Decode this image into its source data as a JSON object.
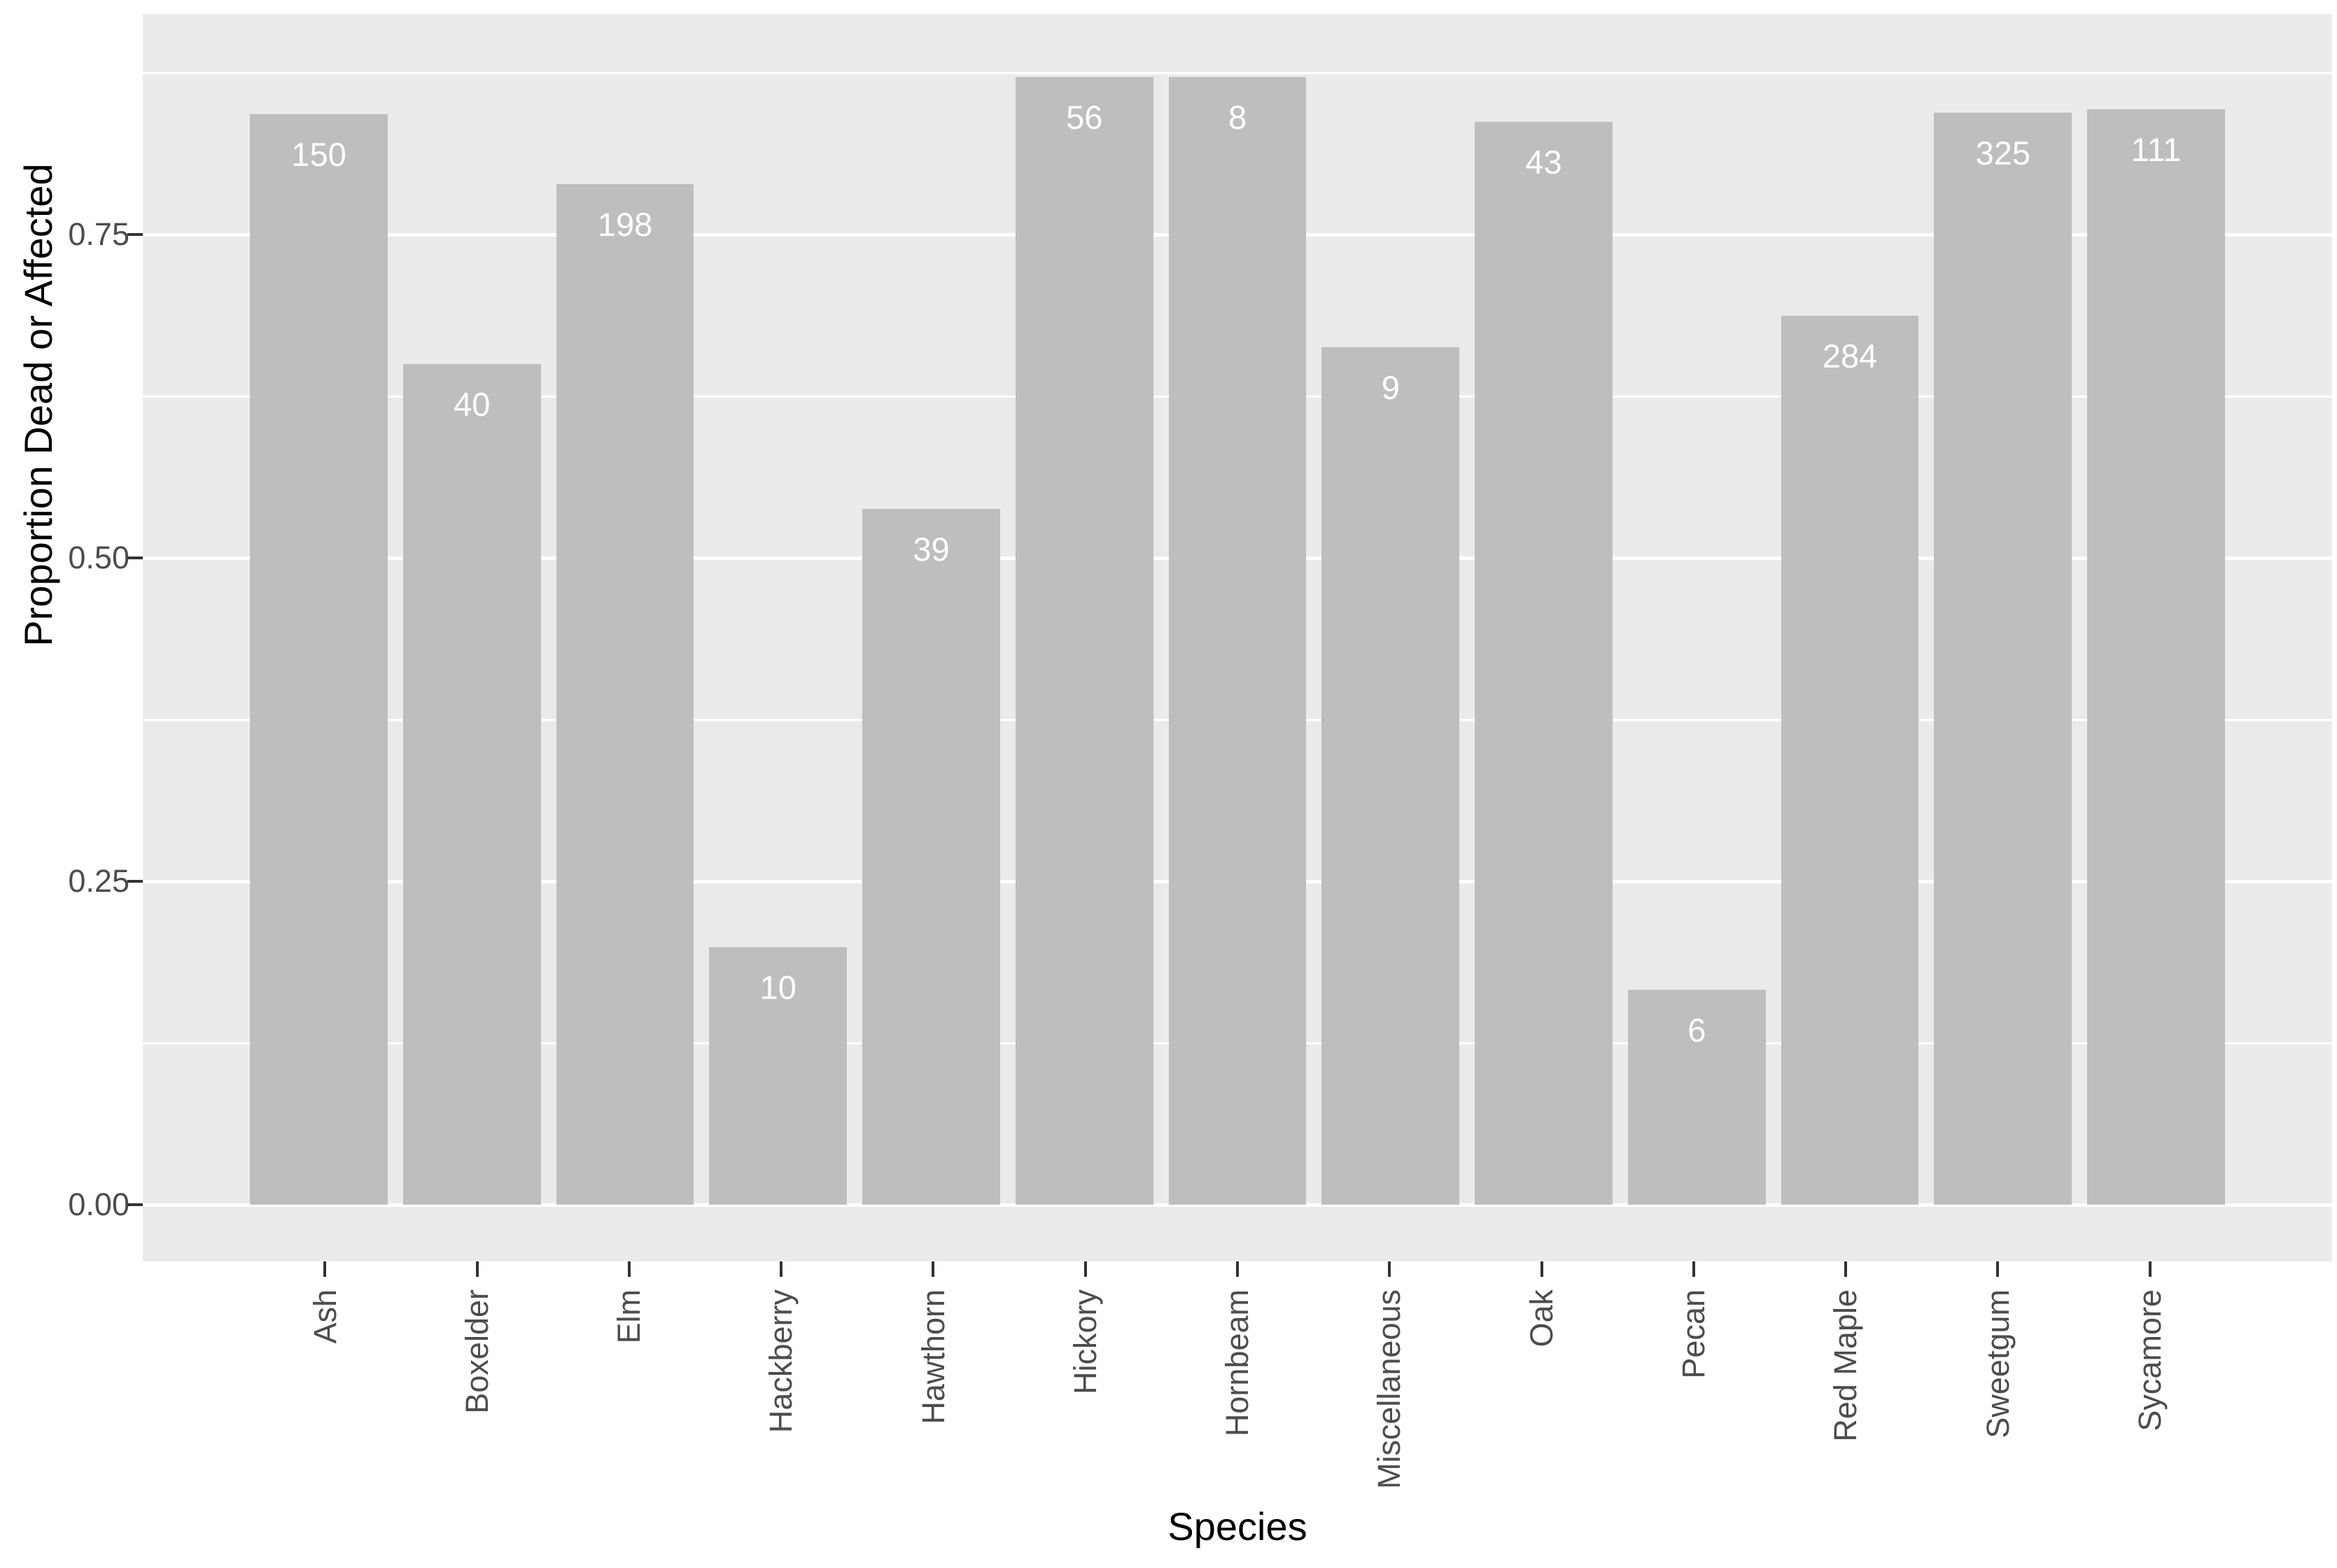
{
  "chart_data": {
    "type": "bar",
    "title": "",
    "xlabel": "Species",
    "ylabel": "Proportion Dead or Affected",
    "categories": [
      "Ash",
      "Boxelder",
      "Elm",
      "Hackberry",
      "Hawthorn",
      "Hickory",
      "Hornbeam",
      "Miscellaneous",
      "Oak",
      "Pecan",
      "Red Maple",
      "Sweetgum",
      "Sycamore"
    ],
    "values": [
      0.843,
      0.65,
      0.789,
      0.199,
      0.538,
      0.872,
      0.872,
      0.663,
      0.837,
      0.166,
      0.687,
      0.844,
      0.847
    ],
    "bar_labels": [
      "150",
      "40",
      "198",
      "10",
      "39",
      "56",
      "8",
      "9",
      "43",
      "6",
      "284",
      "325",
      "111"
    ],
    "y_ticks": [
      {
        "label": "0.00",
        "value": 0.0
      },
      {
        "label": "0.25",
        "value": 0.25
      },
      {
        "label": "0.50",
        "value": 0.5
      },
      {
        "label": "0.75",
        "value": 0.75
      }
    ],
    "y_minor_values": [
      0.125,
      0.375,
      0.625,
      0.875
    ],
    "ylim": [
      -0.044,
      0.919
    ],
    "bar_width_fraction": 0.9,
    "grid": true,
    "legend_position": "none",
    "colors": {
      "bar": "#bebebe",
      "bar_label": "#ffffff",
      "panel_background": "#ebebeb",
      "gridline": "#ffffff",
      "axis_text": "#4d4d4d",
      "tick_mark": "#333333",
      "axis_title": "#000000",
      "figure_background": "#ffffff"
    }
  }
}
